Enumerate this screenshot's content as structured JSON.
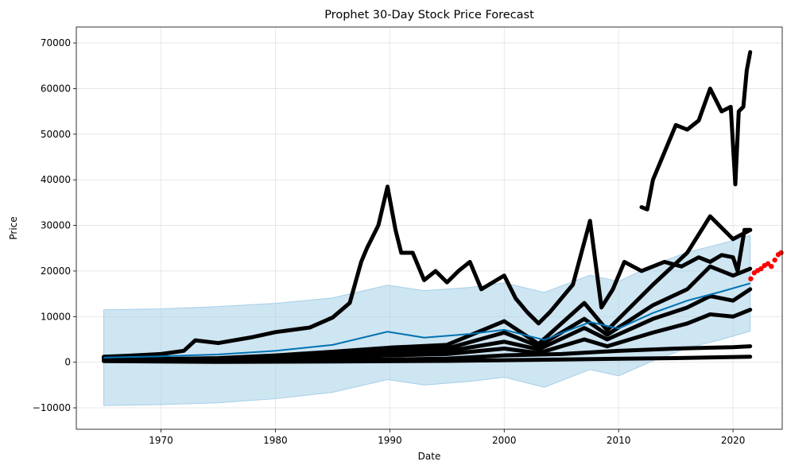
{
  "chart_data": {
    "type": "line",
    "title": "Prophet 30-Day Stock Price Forecast",
    "xlabel": "Date",
    "ylabel": "Price",
    "xlim": [
      1962.6,
      2024.3
    ],
    "ylim": [
      -14700,
      73500
    ],
    "x_ticks": [
      1970,
      1980,
      1990,
      2000,
      2010,
      2020
    ],
    "y_ticks": [
      -10000,
      0,
      10000,
      20000,
      30000,
      40000,
      50000,
      60000,
      70000
    ],
    "grid": true,
    "legend": "none",
    "colors": {
      "observed": "#000000",
      "forecast_trend": "#0072B2",
      "uncertainty_band": "#a6cfe8",
      "future_points": "#ff0000"
    },
    "series": [
      {
        "role": "forecast_trend",
        "x": [
          1965.0,
          1970,
          1975,
          1980,
          1985,
          1989.8,
          1993,
          1997,
          2000,
          2003.5,
          2007.5,
          2010,
          2013,
          2016,
          2019,
          2021.5
        ],
        "y": [
          1000,
          1300,
          1700,
          2500,
          3800,
          6700,
          5400,
          6200,
          7100,
          4900,
          8800,
          7400,
          10800,
          13500,
          15500,
          17300
        ]
      },
      {
        "role": "uncertainty_upper",
        "x": [
          1965.0,
          1970,
          1975,
          1980,
          1985,
          1989.8,
          1993,
          1997,
          2000,
          2003.5,
          2007.5,
          2010,
          2013,
          2016,
          2019,
          2021.5
        ],
        "y": [
          11500,
          11700,
          12200,
          12900,
          14100,
          16900,
          15700,
          16400,
          17400,
          15300,
          19100,
          17700,
          21300,
          24100,
          26000,
          27800
        ]
      },
      {
        "role": "uncertainty_lower",
        "x": [
          1965.0,
          1970,
          1975,
          1980,
          1985,
          1989.8,
          1993,
          1997,
          2000,
          2003.5,
          2007.5,
          2010,
          2013,
          2016,
          2019,
          2021.5
        ],
        "y": [
          -9500,
          -9300,
          -8900,
          -8000,
          -6600,
          -3800,
          -5000,
          -4200,
          -3300,
          -5500,
          -1600,
          -3000,
          300,
          3100,
          5000,
          6800
        ]
      },
      {
        "role": "observed",
        "x": [
          1965.0,
          1967,
          1970,
          1972,
          1973,
          1975,
          1978,
          1980,
          1983,
          1985,
          1986.5,
          1987.5,
          1988,
          1989,
          1989.8,
          1990.5,
          1991,
          1992,
          1993,
          1994,
          1995,
          1996,
          1997,
          1998,
          1999,
          2000,
          2001,
          2002,
          2003,
          2004,
          2006,
          2007.5,
          2008.5,
          2009.5,
          2010.5,
          2012,
          2014,
          2015.5,
          2017,
          2018,
          2019,
          2020,
          2020.4,
          2021,
          2021.5
        ],
        "y": [
          1200,
          1400,
          1800,
          2500,
          4800,
          4200,
          5500,
          6600,
          7600,
          9800,
          13000,
          22000,
          25000,
          30000,
          38500,
          29000,
          24000,
          24000,
          18000,
          20000,
          17500,
          20000,
          22000,
          16000,
          17500,
          19000,
          14000,
          11000,
          8500,
          11000,
          17000,
          31000,
          12000,
          16000,
          22000,
          20000,
          22000,
          21000,
          23000,
          22000,
          23500,
          23000,
          20000,
          29000,
          29000
        ]
      },
      {
        "role": "observed",
        "x": [
          2012.0,
          2012.5,
          2013,
          2014,
          2015,
          2016,
          2017,
          2018,
          2019,
          2019.8,
          2020.2,
          2020.5,
          2020.9,
          2021.2,
          2021.5
        ],
        "y": [
          34000,
          33500,
          40000,
          46000,
          52000,
          51000,
          53000,
          60000,
          55000,
          56000,
          39000,
          55000,
          56000,
          64000,
          68000
        ]
      },
      {
        "role": "observed",
        "x": [
          1965.0,
          1970,
          1975,
          1980,
          1985,
          1990,
          1995,
          2000,
          2003,
          2007,
          2009,
          2013,
          2016,
          2018,
          2020,
          2021.5
        ],
        "y": [
          1100,
          700,
          900,
          1500,
          2300,
          3200,
          3800,
          9000,
          4000,
          13000,
          7000,
          17000,
          24000,
          32000,
          27000,
          29000
        ]
      },
      {
        "role": "observed",
        "x": [
          1965.0,
          1970,
          1975,
          1980,
          1985,
          1990,
          1995,
          2000,
          2003,
          2007,
          2009,
          2013,
          2016,
          2018,
          2020,
          2021.5
        ],
        "y": [
          900,
          500,
          600,
          1100,
          1600,
          2500,
          3000,
          6500,
          3500,
          9500,
          6000,
          12500,
          16000,
          21000,
          19000,
          20500
        ]
      },
      {
        "role": "observed",
        "x": [
          1965.0,
          1970,
          1975,
          1980,
          1985,
          1990,
          1995,
          2000,
          2003,
          2007,
          2009,
          2013,
          2016,
          2018,
          2020,
          2021.5
        ],
        "y": [
          800,
          400,
          500,
          900,
          1300,
          2000,
          2400,
          4500,
          2800,
          7500,
          5000,
          9500,
          12000,
          14500,
          13500,
          16000
        ]
      },
      {
        "role": "observed",
        "x": [
          1965.0,
          1970,
          1975,
          1980,
          1985,
          1990,
          1995,
          2000,
          2003,
          2007,
          2009,
          2013,
          2016,
          2018,
          2020,
          2021.5
        ],
        "y": [
          700,
          300,
          350,
          700,
          1000,
          1500,
          1800,
          3000,
          2000,
          5000,
          3500,
          6500,
          8500,
          10500,
          10000,
          11500
        ]
      },
      {
        "role": "observed",
        "x": [
          1965.0,
          1975,
          1985,
          1995,
          2000,
          2005,
          2010,
          2015,
          2020,
          2021.5
        ],
        "y": [
          500,
          200,
          400,
          800,
          1500,
          1800,
          2500,
          3000,
          3300,
          3500
        ]
      },
      {
        "role": "observed",
        "x": [
          1965.0,
          1975,
          1985,
          1995,
          2005,
          2015,
          2021.5
        ],
        "y": [
          250,
          80,
          150,
          300,
          600,
          900,
          1200
        ]
      },
      {
        "role": "future_points",
        "x": [
          2021.55,
          2021.85,
          2022.15,
          2022.45,
          2022.75,
          2023.05,
          2023.35,
          2023.65,
          2023.95,
          2024.2
        ],
        "y": [
          18300,
          19600,
          20100,
          20500,
          21200,
          21600,
          21000,
          22400,
          23600,
          24000
        ]
      }
    ]
  }
}
